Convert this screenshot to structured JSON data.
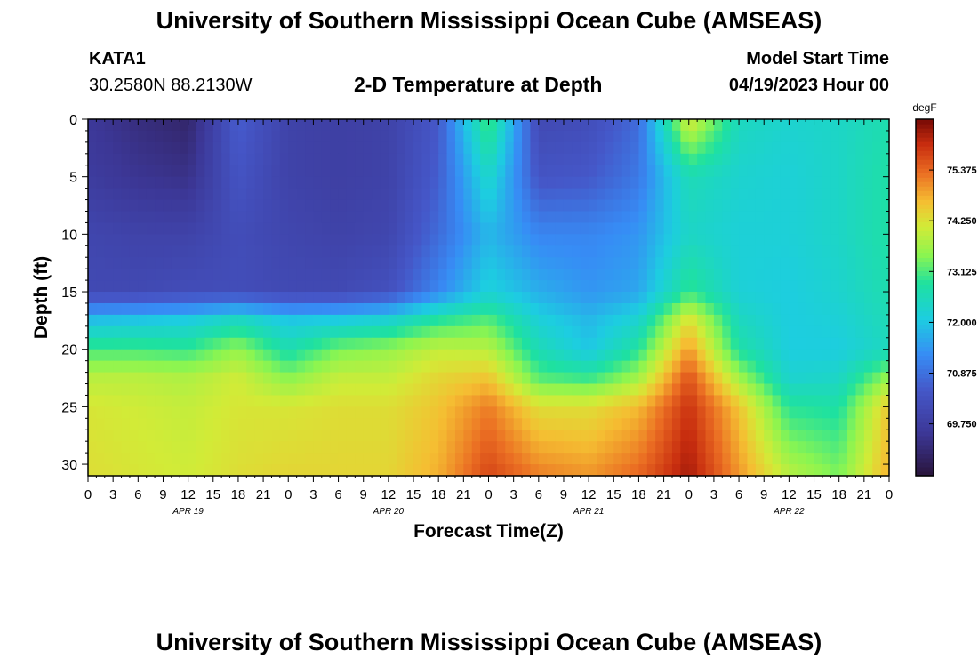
{
  "header": {
    "title": "University of Southern Mississippi Ocean Cube (AMSEAS)",
    "station_id": "KATA1",
    "station_coords": "30.2580N  88.2130W",
    "plot_title": "2-D Temperature at Depth",
    "model_start_label": "Model Start Time",
    "model_start_time": "04/19/2023 Hour 00"
  },
  "footer": {
    "title": "University of Southern Mississippi Ocean Cube (AMSEAS)"
  },
  "chart_data": {
    "type": "heatmap",
    "title": "2-D Temperature at Depth",
    "xlabel": "Forecast Time(Z)",
    "ylabel": "Depth (ft)",
    "x_unit": "hours since 04/19/2023 00Z",
    "xlim": [
      0,
      96
    ],
    "ylim": [
      0,
      31
    ],
    "x_tick_values": [
      0,
      3,
      6,
      9,
      12,
      15,
      18,
      21,
      24,
      27,
      30,
      33,
      36,
      39,
      42,
      45,
      48,
      51,
      54,
      57,
      60,
      63,
      66,
      69,
      72,
      75,
      78,
      81,
      84,
      87,
      90,
      93,
      96
    ],
    "x_tick_labels": [
      "0",
      "3",
      "6",
      "9",
      "12",
      "15",
      "18",
      "21",
      "0",
      "3",
      "6",
      "9",
      "12",
      "15",
      "18",
      "21",
      "0",
      "3",
      "6",
      "9",
      "12",
      "15",
      "18",
      "21",
      "0",
      "3",
      "6",
      "9",
      "12",
      "15",
      "18",
      "21",
      "0"
    ],
    "date_labels": [
      {
        "label": "APR 19",
        "hour": 12
      },
      {
        "label": "APR 20",
        "hour": 36
      },
      {
        "label": "APR 21",
        "hour": 60
      },
      {
        "label": "APR 22",
        "hour": 84
      }
    ],
    "y_tick_values": [
      0,
      5,
      10,
      15,
      20,
      25,
      30
    ],
    "y_tick_labels": [
      "0",
      "5",
      "10",
      "15",
      "20",
      "25",
      "30"
    ],
    "colorbar": {
      "unit": "degF",
      "min": 68.6,
      "max": 76.5,
      "tick_values": [
        69.75,
        70.875,
        72.0,
        73.125,
        74.25,
        75.375
      ],
      "tick_labels": [
        "69.750",
        "70.875",
        "72.000",
        "73.125",
        "74.250",
        "75.375"
      ]
    },
    "grid": false,
    "time_hours": [
      0,
      6,
      12,
      18,
      24,
      30,
      36,
      42,
      48,
      54,
      60,
      66,
      72,
      78,
      84,
      90,
      96
    ],
    "depth_ft": [
      0,
      5,
      10,
      15,
      17.5,
      20,
      22.5,
      25,
      31
    ],
    "temperature_degF": [
      [
        69.6,
        69.3,
        69.1,
        70.6,
        69.9,
        69.8,
        69.9,
        70.5,
        73.2,
        70.1,
        70.2,
        70.8,
        74.2,
        72.5,
        72.3,
        72.4,
        72.7
      ],
      [
        69.7,
        69.5,
        69.4,
        70.4,
        69.9,
        69.8,
        69.9,
        70.6,
        72.4,
        70.4,
        70.5,
        71.0,
        72.6,
        72.3,
        72.2,
        72.4,
        72.8
      ],
      [
        70.0,
        69.9,
        69.9,
        70.2,
        70.0,
        69.9,
        70.0,
        70.8,
        71.8,
        71.2,
        71.2,
        71.4,
        72.4,
        72.2,
        72.2,
        72.4,
        72.8
      ],
      [
        70.1,
        70.1,
        70.2,
        70.2,
        70.1,
        70.1,
        70.3,
        71.2,
        72.2,
        71.7,
        71.4,
        71.6,
        73.0,
        72.2,
        72.1,
        72.3,
        72.7
      ],
      [
        71.9,
        72.0,
        72.1,
        72.5,
        72.0,
        72.1,
        72.3,
        72.9,
        73.2,
        72.2,
        71.8,
        72.3,
        74.3,
        72.5,
        72.1,
        72.2,
        72.6
      ],
      [
        73.1,
        73.1,
        73.0,
        73.6,
        72.7,
        73.4,
        73.6,
        74.0,
        73.9,
        72.6,
        72.0,
        72.9,
        75.0,
        72.8,
        72.1,
        72.1,
        72.5
      ],
      [
        73.9,
        73.9,
        73.8,
        74.1,
        73.5,
        74.0,
        74.0,
        74.4,
        74.6,
        73.2,
        73.0,
        73.7,
        75.6,
        73.7,
        72.3,
        72.4,
        73.6
      ],
      [
        74.2,
        74.1,
        74.0,
        74.2,
        74.2,
        74.3,
        74.3,
        74.6,
        75.2,
        74.3,
        74.3,
        74.7,
        75.9,
        74.6,
        72.9,
        72.8,
        74.6
      ],
      [
        74.3,
        74.2,
        74.1,
        74.3,
        74.4,
        74.4,
        74.4,
        74.8,
        75.7,
        75.2,
        75.0,
        75.4,
        76.2,
        75.0,
        73.9,
        73.4,
        74.8
      ]
    ]
  }
}
